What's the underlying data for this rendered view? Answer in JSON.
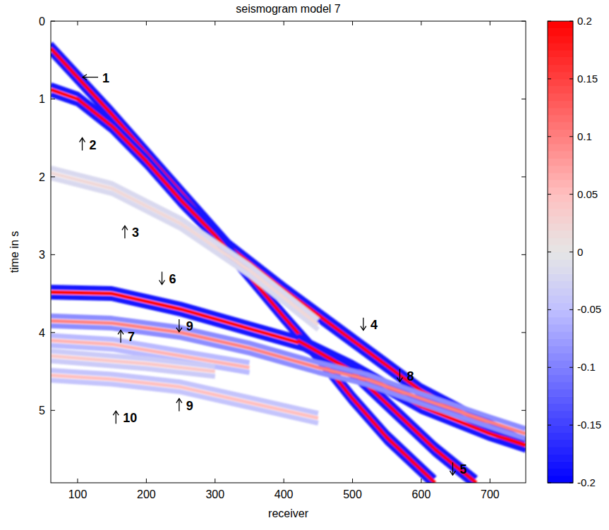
{
  "chart_data": {
    "type": "seismogram",
    "title": "seismogram model 7",
    "x_label": "receiver",
    "y_label": "time in s",
    "xlim": [
      61,
      752
    ],
    "ylim": [
      5.93,
      0
    ],
    "xticks": [
      100,
      200,
      300,
      400,
      500,
      600,
      700
    ],
    "yticks": [
      0,
      1,
      2,
      3,
      4,
      5
    ],
    "colorbar": {
      "range": [
        -0.2,
        0.2
      ],
      "ticks": [
        0.2,
        0.15,
        0.1,
        0.05,
        0,
        -0.05,
        -0.1,
        -0.15,
        -0.2
      ]
    },
    "events": [
      {
        "x": [
          61,
          150,
          250,
          320,
          400,
          500,
          600,
          752
        ],
        "t": [
          0.35,
          1.2,
          2.2,
          2.9,
          3.45,
          4.1,
          4.75,
          5.45
        ],
        "amplitude": 0.2
      },
      {
        "x": [
          61,
          100,
          150,
          200,
          250,
          300,
          400,
          450,
          500,
          550,
          620
        ],
        "t": [
          0.88,
          1.0,
          1.35,
          1.8,
          2.3,
          2.75,
          3.8,
          4.3,
          4.85,
          5.35,
          5.93
        ],
        "amplitude": 0.2
      },
      {
        "x": [
          61,
          150,
          250,
          350,
          450
        ],
        "t": [
          1.95,
          2.15,
          2.6,
          3.2,
          3.9
        ],
        "amplitude": 0.02
      },
      {
        "x": [
          61,
          150,
          250,
          350,
          430,
          500,
          600,
          700,
          752
        ],
        "t": [
          3.48,
          3.5,
          3.7,
          3.95,
          4.15,
          4.45,
          4.95,
          5.3,
          5.45
        ],
        "amplitude": 0.2
      },
      {
        "x": [
          420,
          500,
          560,
          620,
          680
        ],
        "t": [
          4.1,
          4.5,
          5.0,
          5.5,
          5.93
        ],
        "amplitude": 0.2
      },
      {
        "x": [
          61,
          150,
          250,
          350,
          450,
          520,
          600,
          700,
          752
        ],
        "t": [
          3.85,
          3.88,
          4.0,
          4.2,
          4.45,
          4.6,
          4.85,
          5.15,
          5.3
        ],
        "amplitude": 0.1
      },
      {
        "x": [
          61,
          150,
          250,
          350
        ],
        "t": [
          4.1,
          4.15,
          4.3,
          4.45
        ],
        "amplitude": 0.06
      },
      {
        "x": [
          61,
          200,
          300
        ],
        "t": [
          4.3,
          4.4,
          4.5
        ],
        "amplitude": 0.04
      },
      {
        "x": [
          61,
          150,
          250,
          350,
          450
        ],
        "t": [
          4.55,
          4.6,
          4.7,
          4.9,
          5.1
        ],
        "amplitude": 0.05
      }
    ],
    "annotations": [
      {
        "text": "1",
        "arrow": "left",
        "x": 136,
        "y": 0.72
      },
      {
        "text": "2",
        "arrow": "up",
        "x": 117,
        "y": 1.58
      },
      {
        "text": "3",
        "arrow": "up",
        "x": 179,
        "y": 2.71
      },
      {
        "text": "4",
        "arrow": "down",
        "x": 526,
        "y": 3.89
      },
      {
        "text": "5",
        "arrow": "down",
        "x": 656,
        "y": 5.75
      },
      {
        "text": "6",
        "arrow": "down",
        "x": 233,
        "y": 3.3
      },
      {
        "text": "7",
        "arrow": "up",
        "x": 173,
        "y": 4.05
      },
      {
        "text": "8",
        "arrow": "down",
        "x": 579,
        "y": 4.55
      },
      {
        "text": "9",
        "arrow": "down",
        "x": 258,
        "y": 3.91
      },
      {
        "text": "9",
        "arrow": "up",
        "x": 258,
        "y": 4.93
      },
      {
        "text": "10",
        "arrow": "up",
        "x": 166,
        "y": 5.09
      }
    ]
  }
}
